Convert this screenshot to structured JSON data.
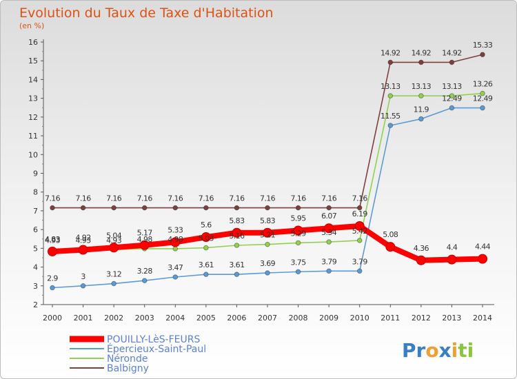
{
  "chart_data": {
    "type": "line",
    "title": "Evolution du Taux de Taxe d'Habitation",
    "subtitle": "(en %)",
    "x": [
      2000,
      2001,
      2002,
      2003,
      2004,
      2005,
      2006,
      2007,
      2008,
      2009,
      2010,
      2011,
      2012,
      2013,
      2014
    ],
    "ylim": [
      2,
      16
    ],
    "yticks": [
      2,
      3,
      4,
      5,
      6,
      7,
      8,
      9,
      10,
      11,
      12,
      13,
      14,
      15,
      16
    ],
    "grid": false,
    "legend_position": "bottom-left",
    "series": [
      {
        "name": "POUILLY-LèS-FEURS",
        "color": "#ff0000",
        "values": [
          4.83,
          4.92,
          5.04,
          5.17,
          5.33,
          5.6,
          5.83,
          5.83,
          5.95,
          6.07,
          6.19,
          5.08,
          4.36,
          4.4,
          4.44
        ],
        "labels": [
          "4.83",
          "4.92",
          "5.04",
          "5.17",
          "5.33",
          "5.6",
          "5.83",
          "5.83",
          "5.95",
          "6.07",
          "6.19",
          "5.08",
          "4.36",
          "4.4",
          "4.44"
        ]
      },
      {
        "name": "Épercieux-Saint-Paul",
        "color": "#5b9bd5",
        "values": [
          2.9,
          3,
          3.12,
          3.28,
          3.47,
          3.61,
          3.61,
          3.69,
          3.75,
          3.79,
          3.79,
          11.55,
          11.9,
          12.49,
          12.49
        ],
        "labels": [
          "2.9",
          "3",
          "3.12",
          "3.28",
          "3.47",
          "3.61",
          "3.61",
          "3.69",
          "3.75",
          "3.79",
          "3.79",
          "11.55",
          "11.9",
          "12.49",
          "12.49"
        ]
      },
      {
        "name": "Néronde",
        "color": "#92d050",
        "values": [
          4.93,
          4.93,
          4.93,
          4.98,
          4.98,
          5.03,
          5.16,
          5.21,
          5.29,
          5.34,
          5.42,
          13.13,
          13.13,
          13.13,
          13.26
        ],
        "labels": [
          "4.93",
          "4.93",
          "4.93",
          "4.98",
          "4.98",
          "5.03",
          "5.16",
          "5.21",
          "5.29",
          "5.34",
          "5.42",
          "13.13",
          "13.13",
          "13.13",
          "13.26"
        ]
      },
      {
        "name": "Balbigny",
        "color": "#7f3f3f",
        "values": [
          7.16,
          7.16,
          7.16,
          7.16,
          7.16,
          7.16,
          7.16,
          7.16,
          7.16,
          7.16,
          7.16,
          14.92,
          14.92,
          14.92,
          15.33
        ],
        "labels": [
          "7.16",
          "7.16",
          "7.16",
          "7.16",
          "7.16",
          "7.16",
          "7.16",
          "7.16",
          "7.16",
          "7.16",
          "7.16",
          "14.92",
          "14.92",
          "14.92",
          "15.33"
        ]
      }
    ]
  },
  "logo": {
    "text": "Proxiti",
    "letters": [
      {
        "char": "P",
        "color": "#3a7fc1"
      },
      {
        "char": "r",
        "color": "#3a7fc1"
      },
      {
        "char": "o",
        "color": "#f0a030"
      },
      {
        "char": "x",
        "color": "#3a7fc1"
      },
      {
        "char": "i",
        "color": "#f0a030"
      },
      {
        "char": "t",
        "color": "#8cc63f"
      },
      {
        "char": "i",
        "color": "#8cc63f"
      }
    ]
  }
}
